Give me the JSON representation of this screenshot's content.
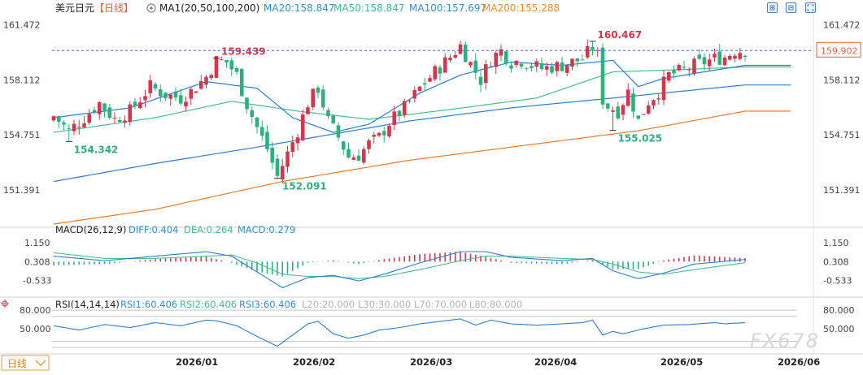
{
  "header": {
    "symbol": "美元日元",
    "period_tag": "【日线】",
    "ma_label": "MA1(20,50,100,200)",
    "ma_values": [
      {
        "text": "MA20:158.847",
        "color": "#2f8fd8"
      },
      {
        "text": "MA50:158.847",
        "color": "#3bbf8f"
      },
      {
        "text": "MA100:157.697",
        "color": "#2f8fd8"
      },
      {
        "text": "MA200:155.288",
        "color": "#f08a2a"
      }
    ]
  },
  "colors": {
    "up": "#d9344b",
    "down": "#2db07c",
    "ma20": "#2a7ed8",
    "ma50": "#44c08e",
    "ma100": "#2a7ed8",
    "ma200": "#f07b24",
    "diff": "#2a7ed8",
    "dea": "#44c08e",
    "rsi": "#2a7ed8",
    "last_price": "#e8613c",
    "axis_text": "#444444",
    "grid": "#e6e6e6"
  },
  "price_axis": {
    "ticks": [
      "161.472",
      "158.112",
      "154.751",
      "151.391"
    ],
    "last_price": "159.902"
  },
  "date_axis": {
    "labels": [
      "2026/01",
      "2026/02",
      "2026/03",
      "2026/04",
      "2026/05",
      "2026/06"
    ],
    "period_button": "日线"
  },
  "annotations": {
    "high1": "159.439",
    "low1": "154.342",
    "low2": "152.091",
    "high2": "160.467",
    "low3": "155.025"
  },
  "macd_panel": {
    "label": "MACD(26,12,9)",
    "values": [
      {
        "text": "DIFF:0.404",
        "color": "#2f8fd8"
      },
      {
        "text": "DEA:0.264",
        "color": "#3bbf8f"
      },
      {
        "text": "MACD:0.279",
        "color": "#2f8fd8"
      }
    ],
    "ticks": [
      "1.150",
      "0.308",
      "-0.533"
    ]
  },
  "rsi_panel": {
    "label": "RSI(14,14,14)",
    "values": [
      {
        "text": "RSI1:60.406",
        "color": "#2f8fd8"
      },
      {
        "text": "RSI2:60.406",
        "color": "#3bbf8f"
      },
      {
        "text": "RSI3:60.406",
        "color": "#2f8fd8"
      },
      {
        "text": "L20:20.000",
        "color": "#b3b3b3"
      },
      {
        "text": "L30:30.000",
        "color": "#b3b3b3"
      },
      {
        "text": "L70:70.000",
        "color": "#b3b3b3"
      },
      {
        "text": "L80:80.000",
        "color": "#b3b3b3"
      }
    ],
    "ticks": [
      "80.000",
      "50.000"
    ]
  },
  "watermark": "FX678",
  "chart_data": {
    "type": "candlestick",
    "instrument": "美元日元",
    "period": "日线",
    "ylim": [
      149.2,
      162.0
    ],
    "x_range": [
      "2025-12-03",
      "2026-06-03"
    ],
    "ma": {
      "MA20": {
        "latest": 158.847
      },
      "MA50": {
        "latest": 158.847
      },
      "MA100": {
        "latest": 157.697
      },
      "MA200": {
        "latest": 155.288
      }
    },
    "ma_keypoints": {
      "MA200": [
        [
          0,
          149.3
        ],
        [
          20,
          150.2
        ],
        [
          45,
          151.9
        ],
        [
          70,
          153.2
        ],
        [
          95,
          154.2
        ],
        [
          115,
          155.0
        ],
        [
          136,
          156.2
        ]
      ],
      "MA100": [
        [
          0,
          151.9
        ],
        [
          20,
          153.0
        ],
        [
          40,
          154.0
        ],
        [
          55,
          154.8
        ],
        [
          70,
          155.6
        ],
        [
          90,
          156.4
        ],
        [
          110,
          157.0
        ],
        [
          136,
          157.8
        ]
      ],
      "MA50": [
        [
          0,
          154.9
        ],
        [
          20,
          155.8
        ],
        [
          35,
          156.8
        ],
        [
          48,
          156.2
        ],
        [
          62,
          155.7
        ],
        [
          78,
          156.3
        ],
        [
          95,
          157.0
        ],
        [
          110,
          158.6
        ],
        [
          120,
          158.7
        ],
        [
          136,
          158.9
        ]
      ],
      "MA20": [
        [
          0,
          155.8
        ],
        [
          15,
          156.4
        ],
        [
          30,
          158.0
        ],
        [
          40,
          157.6
        ],
        [
          47,
          155.8
        ],
        [
          55,
          154.9
        ],
        [
          62,
          155.4
        ],
        [
          72,
          157.3
        ],
        [
          80,
          158.4
        ],
        [
          90,
          159.2
        ],
        [
          100,
          159.0
        ],
        [
          110,
          159.3
        ],
        [
          115,
          157.7
        ],
        [
          120,
          158.2
        ],
        [
          136,
          159.0
        ]
      ]
    },
    "anchors": [
      [
        0,
        155.9
      ],
      [
        3,
        155.0
      ],
      [
        6,
        155.8
      ],
      [
        9,
        156.7
      ],
      [
        12,
        155.7
      ],
      [
        15,
        156.2
      ],
      [
        19,
        157.7
      ],
      [
        22,
        157.2
      ],
      [
        25,
        157.0
      ],
      [
        27,
        157.4
      ],
      [
        30,
        158.3
      ],
      [
        32,
        159.3
      ],
      [
        34,
        159.2
      ],
      [
        36,
        158.4
      ],
      [
        38,
        156.6
      ],
      [
        40,
        155.2
      ],
      [
        42,
        153.9
      ],
      [
        44,
        152.2
      ],
      [
        46,
        153.6
      ],
      [
        48,
        155.0
      ],
      [
        50,
        156.7
      ],
      [
        52,
        157.6
      ],
      [
        54,
        155.6
      ],
      [
        56,
        154.6
      ],
      [
        58,
        153.4
      ],
      [
        60,
        153.5
      ],
      [
        62,
        154.2
      ],
      [
        64,
        154.6
      ],
      [
        66,
        155.5
      ],
      [
        69,
        156.4
      ],
      [
        72,
        157.6
      ],
      [
        75,
        158.6
      ],
      [
        78,
        159.5
      ],
      [
        80,
        160.2
      ],
      [
        82,
        159.1
      ],
      [
        84,
        158.1
      ],
      [
        86,
        159.4
      ],
      [
        88,
        159.9
      ],
      [
        90,
        159.2
      ],
      [
        92,
        159.3
      ],
      [
        94,
        159.0
      ],
      [
        96,
        158.8
      ],
      [
        98,
        158.9
      ],
      [
        100,
        159.0
      ],
      [
        102,
        159.2
      ],
      [
        104,
        159.4
      ],
      [
        106,
        160.1
      ],
      [
        107,
        159.6
      ],
      [
        108,
        156.9
      ],
      [
        109,
        156.5
      ],
      [
        111,
        156.2
      ],
      [
        113,
        157.4
      ],
      [
        115,
        155.6
      ],
      [
        117,
        156.8
      ],
      [
        119,
        157.4
      ],
      [
        121,
        158.4
      ],
      [
        124,
        158.7
      ],
      [
        126,
        159.0
      ],
      [
        128,
        159.2
      ],
      [
        130,
        159.4
      ],
      [
        132,
        159.5
      ],
      [
        134,
        159.9
      ],
      [
        136,
        159.9
      ]
    ],
    "annotated_points": [
      {
        "label": "159.439",
        "type": "high",
        "x_index": 32,
        "value": 159.439
      },
      {
        "label": "154.342",
        "type": "low",
        "x_index": 3,
        "value": 154.342
      },
      {
        "label": "152.091",
        "type": "low",
        "x_index": 44,
        "value": 152.091
      },
      {
        "label": "160.467",
        "type": "high",
        "x_index": 106,
        "value": 160.467
      },
      {
        "label": "155.025",
        "type": "low",
        "x_index": 110,
        "value": 155.025
      }
    ],
    "last_price": 159.902,
    "macd": {
      "params": "26,12,9",
      "diff": 0.404,
      "dea": 0.264,
      "macd": 0.279,
      "ylim": [
        -1.05,
        1.4
      ],
      "diff_keypoints": [
        [
          0,
          0.55
        ],
        [
          10,
          0.35
        ],
        [
          20,
          0.55
        ],
        [
          30,
          0.75
        ],
        [
          35,
          0.55
        ],
        [
          40,
          -0.15
        ],
        [
          45,
          -0.85
        ],
        [
          50,
          -0.4
        ],
        [
          55,
          -0.3
        ],
        [
          60,
          -0.55
        ],
        [
          65,
          -0.25
        ],
        [
          72,
          0.25
        ],
        [
          80,
          0.75
        ],
        [
          85,
          0.75
        ],
        [
          90,
          0.5
        ],
        [
          100,
          0.35
        ],
        [
          106,
          0.45
        ],
        [
          110,
          -0.1
        ],
        [
          115,
          -0.45
        ],
        [
          120,
          -0.2
        ],
        [
          126,
          0.2
        ],
        [
          136,
          0.4
        ]
      ],
      "dea_keypoints": [
        [
          0,
          0.7
        ],
        [
          10,
          0.45
        ],
        [
          20,
          0.45
        ],
        [
          30,
          0.55
        ],
        [
          35,
          0.6
        ],
        [
          40,
          0.25
        ],
        [
          45,
          -0.25
        ],
        [
          50,
          -0.35
        ],
        [
          55,
          -0.35
        ],
        [
          60,
          -0.45
        ],
        [
          65,
          -0.35
        ],
        [
          72,
          -0.05
        ],
        [
          80,
          0.35
        ],
        [
          85,
          0.55
        ],
        [
          90,
          0.55
        ],
        [
          100,
          0.45
        ],
        [
          106,
          0.4
        ],
        [
          110,
          0.2
        ],
        [
          115,
          -0.15
        ],
        [
          120,
          -0.25
        ],
        [
          126,
          -0.05
        ],
        [
          136,
          0.26
        ]
      ]
    },
    "rsi": {
      "params": "14,14,14",
      "rsi1": 60.406,
      "rsi2": 60.406,
      "rsi3": 60.406,
      "levels": [
        20,
        30,
        70,
        80
      ],
      "ylim": [
        15,
        88
      ],
      "keypoints": [
        [
          0,
          55
        ],
        [
          5,
          48
        ],
        [
          10,
          57
        ],
        [
          15,
          52
        ],
        [
          20,
          60
        ],
        [
          25,
          55
        ],
        [
          30,
          64
        ],
        [
          32,
          63
        ],
        [
          36,
          55
        ],
        [
          40,
          38
        ],
        [
          44,
          22
        ],
        [
          47,
          40
        ],
        [
          50,
          58
        ],
        [
          52,
          62
        ],
        [
          55,
          42
        ],
        [
          58,
          35
        ],
        [
          61,
          40
        ],
        [
          64,
          48
        ],
        [
          68,
          52
        ],
        [
          72,
          58
        ],
        [
          76,
          62
        ],
        [
          80,
          66
        ],
        [
          83,
          56
        ],
        [
          86,
          64
        ],
        [
          90,
          58
        ],
        [
          95,
          56
        ],
        [
          100,
          58
        ],
        [
          104,
          60
        ],
        [
          106,
          64
        ],
        [
          108,
          40
        ],
        [
          110,
          46
        ],
        [
          112,
          42
        ],
        [
          116,
          50
        ],
        [
          120,
          56
        ],
        [
          125,
          57
        ],
        [
          130,
          60
        ],
        [
          132,
          58
        ],
        [
          136,
          60
        ]
      ]
    },
    "date_labels": [
      "2026/01",
      "2026/02",
      "2026/03",
      "2026/04",
      "2026/05",
      "2026/06"
    ],
    "date_label_index": [
      26,
      50,
      74,
      100,
      126,
      152
    ]
  }
}
